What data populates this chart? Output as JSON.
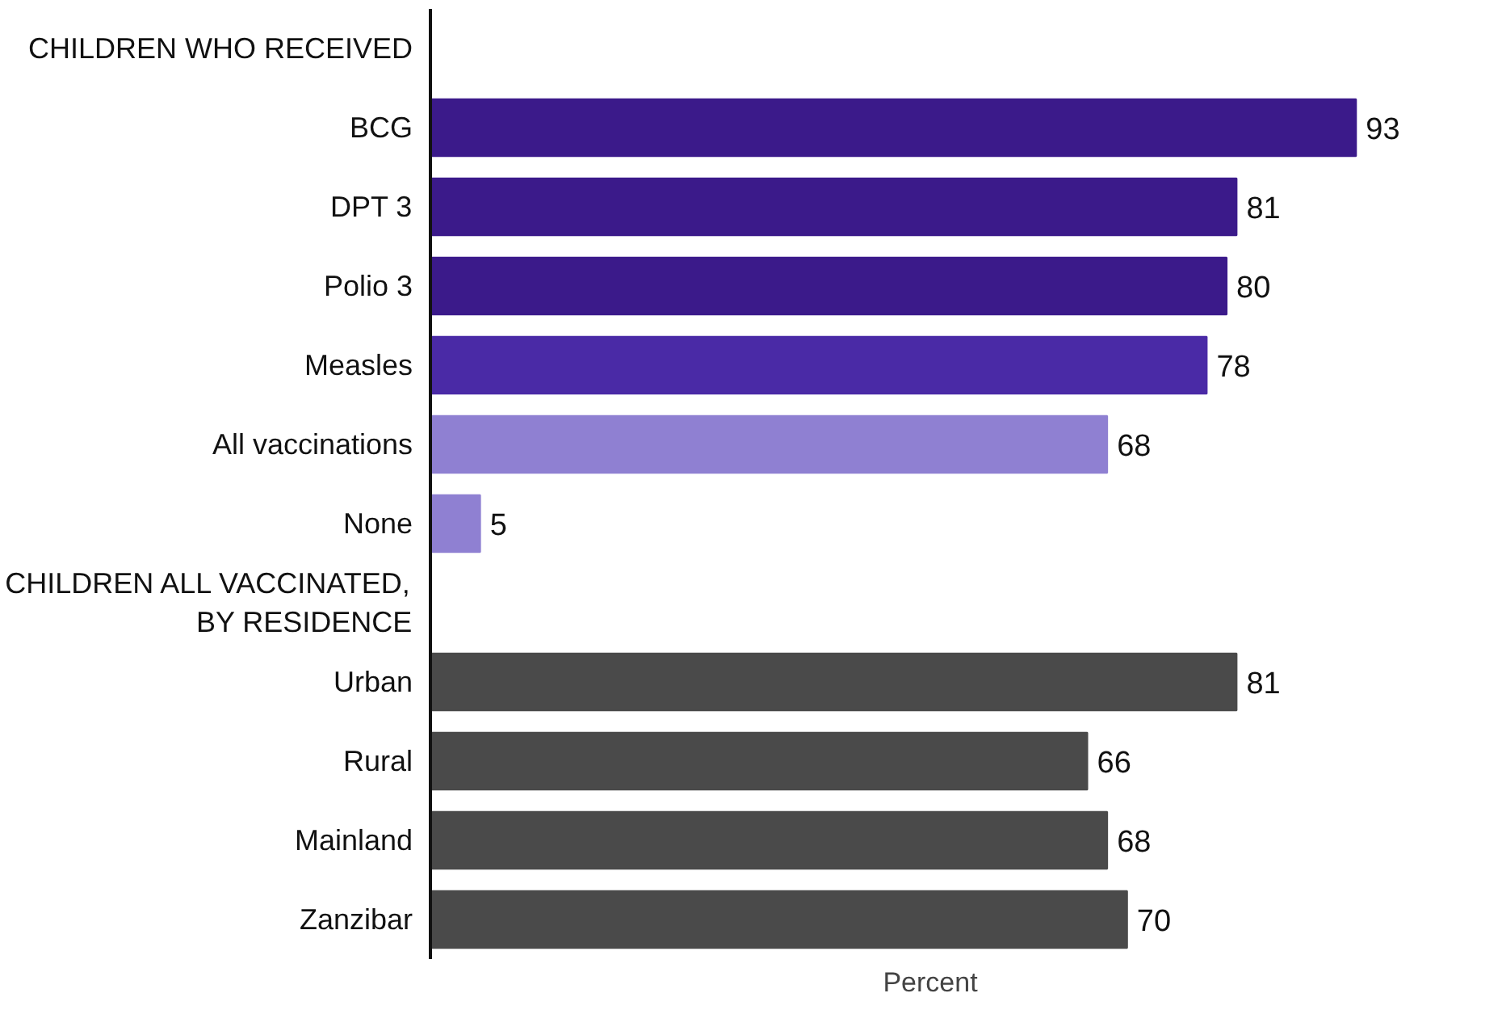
{
  "chart_data": {
    "type": "bar",
    "orientation": "horizontal",
    "xlabel": "Percent",
    "categories": [
      "CHILDREN WHO RECEIVED",
      "BCG",
      "DPT 3",
      "Polio 3",
      "Measles",
      "All vaccinations",
      "None",
      "CHILDREN ALL VACCINATED,\nBY RESIDENCE",
      "Urban",
      "Rural",
      "Mainland",
      "Zanzibar"
    ],
    "values": [
      null,
      93,
      81,
      80,
      78,
      68,
      5,
      null,
      81,
      66,
      68,
      70
    ],
    "colors": [
      "#3b1a8a",
      "#3b1a8a",
      "#3b1a8a",
      "#3b1a8a",
      "#4a2aa6",
      "#8f80d2",
      "#8f80d2",
      "#3b1a8a",
      "#4a4a4a",
      "#4a4a4a",
      "#4a4a4a",
      "#4a4a4a"
    ],
    "tick_labels": "y",
    "data_labels": true,
    "grid": false
  }
}
